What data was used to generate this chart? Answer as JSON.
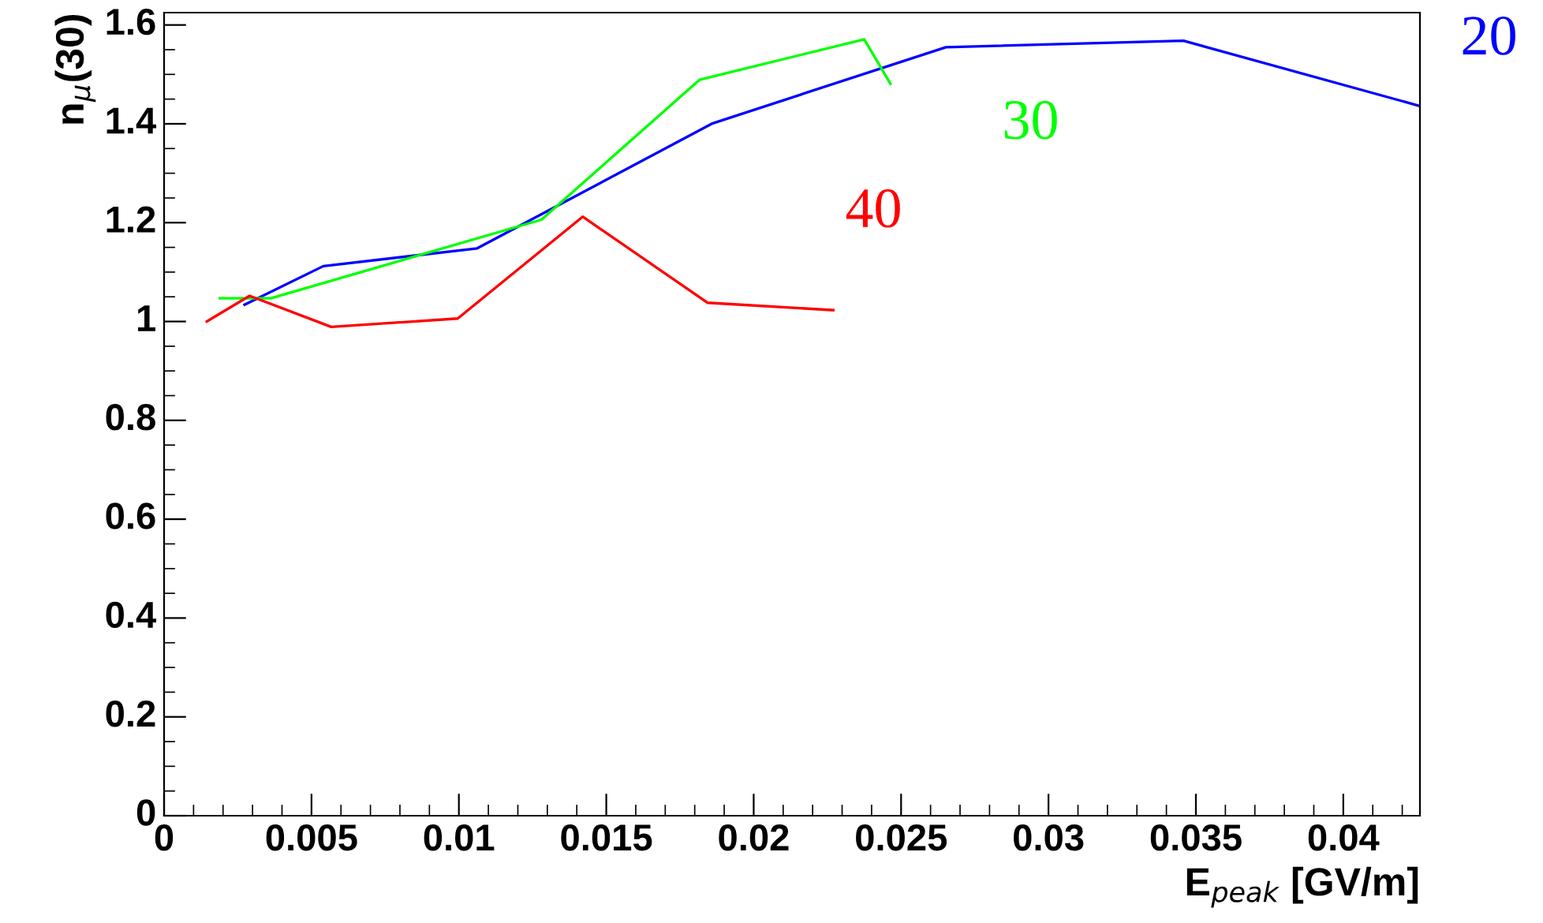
{
  "chart_data": {
    "type": "line",
    "xlabel": "E$_{peak}$ [GV/m]",
    "ylabel": "n$_{μ}$(30)",
    "xlim": [
      0,
      0.0426
    ],
    "ylim": [
      0,
      1.625
    ],
    "xticks": [
      0,
      0.005,
      0.01,
      0.015,
      0.02,
      0.025,
      0.03,
      0.035,
      0.04
    ],
    "yticks": [
      0,
      0.2,
      0.4,
      0.6,
      0.8,
      1,
      1.2,
      1.4,
      1.6
    ],
    "grid": false,
    "legend": false,
    "series": [
      {
        "name": "20",
        "color": "#0000ff",
        "x": [
          0.00273,
          0.0054,
          0.01062,
          0.01861,
          0.02652,
          0.03458,
          0.0426
        ],
        "values": [
          1.034,
          1.112,
          1.148,
          1.401,
          1.555,
          1.568,
          1.436
        ]
      },
      {
        "name": "30",
        "color": "#00ff00",
        "x": [
          0.00189,
          0.00362,
          0.0128,
          0.01816,
          0.02375,
          0.02464
        ],
        "values": [
          1.047,
          1.047,
          1.206,
          1.489,
          1.571,
          1.481
        ]
      },
      {
        "name": "40",
        "color": "#ff0000",
        "x": [
          0.00145,
          0.0029,
          0.00567,
          0.00996,
          0.0142,
          0.01843,
          0.0227
        ],
        "values": [
          1.0,
          1.052,
          0.989,
          1.006,
          1.212,
          1.038,
          1.023
        ]
      }
    ]
  }
}
